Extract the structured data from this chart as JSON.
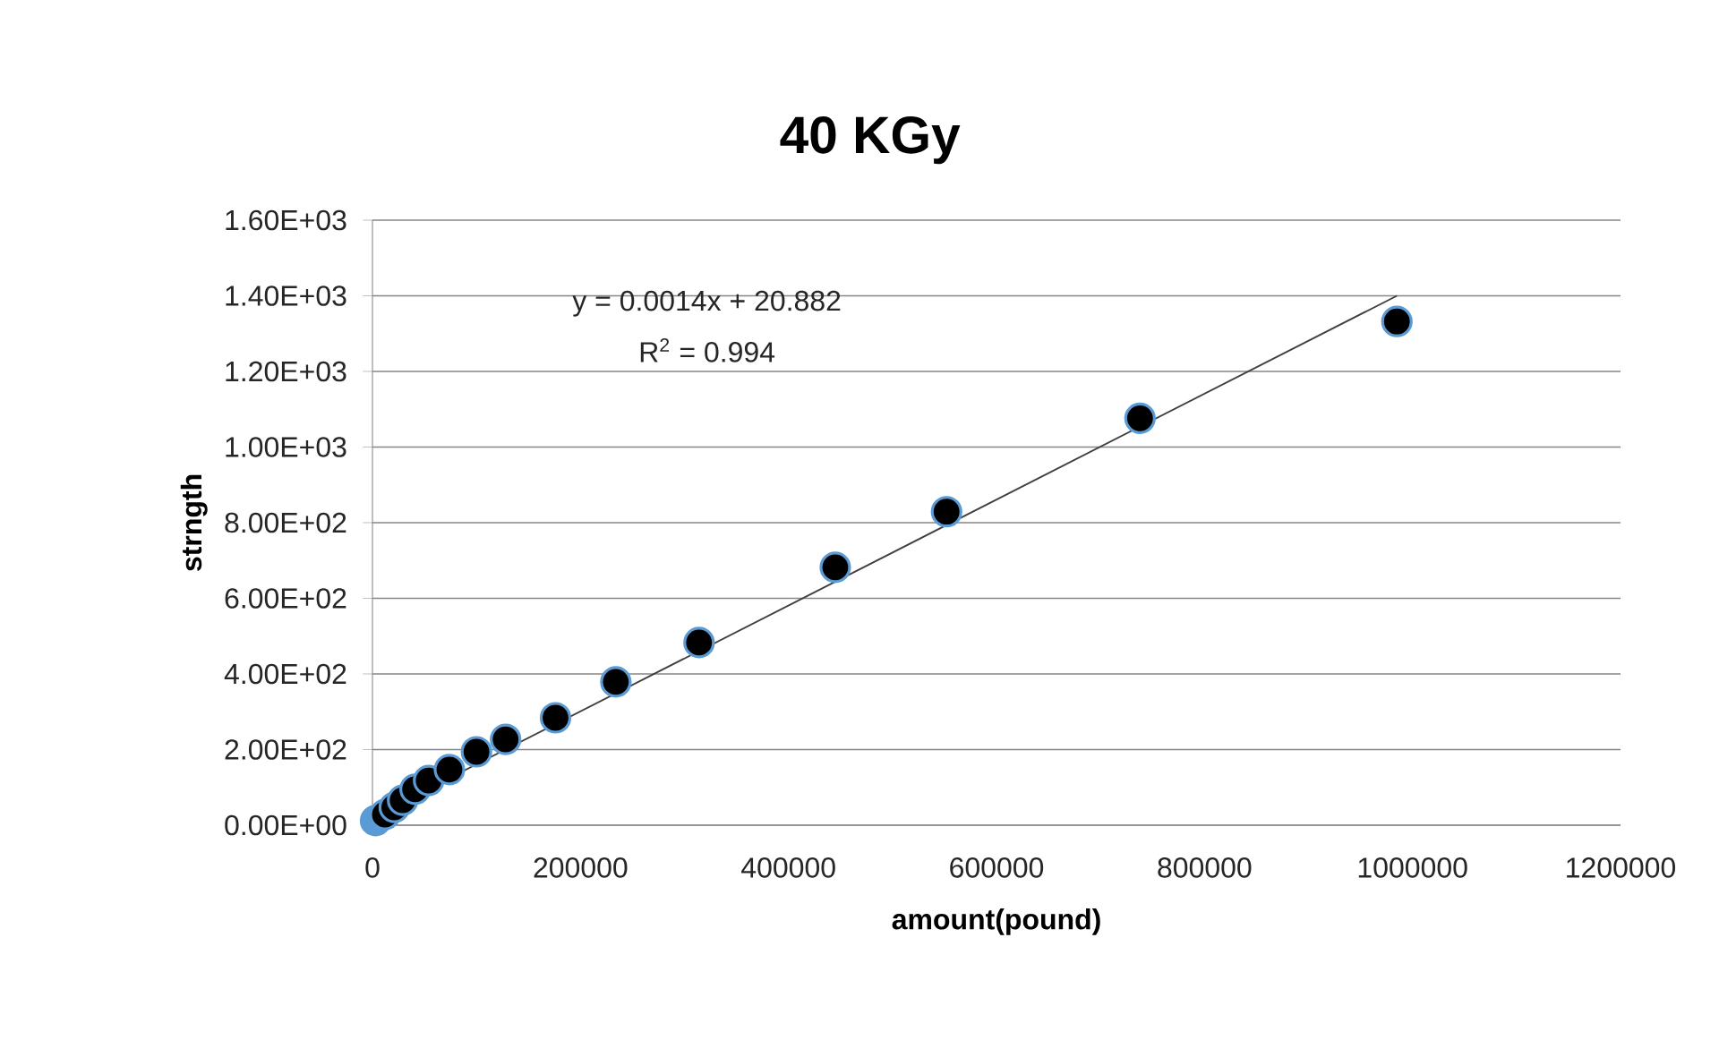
{
  "chart_data": {
    "type": "scatter",
    "title": "40 KGy",
    "xlabel": "amount(pound)",
    "ylabel": "strngth",
    "annotations": [
      "y = 0.0014x + 20.882",
      "R$^{2}$ = 0.994"
    ],
    "series": [
      {
        "color": "#5b9bd5",
        "x": [
          3000,
          12000,
          21000,
          29000,
          41000,
          54000,
          74000,
          100000,
          128000,
          176000,
          234000,
          314000,
          445000,
          552000,
          738000,
          985000
        ],
        "values": [
          12,
          28,
          47,
          66,
          95,
          118,
          147,
          194,
          227,
          284,
          379,
          483,
          682,
          829,
          1076,
          1332
        ],
        "colors": [
          "#5b9bd5",
          "#000000",
          "#000000",
          "#000000",
          "#000000",
          "#000000",
          "#000000",
          "#000000",
          "#000000",
          "#000000",
          "#000000",
          "#000000",
          "#000000",
          "#000000",
          "#000000",
          "#000000"
        ]
      },
      {
        "type": "line",
        "marker": "none",
        "color": "#3f3f3f",
        "x": [
          0,
          985000
        ],
        "values": [
          21,
          1400
        ]
      }
    ],
    "xlim": [
      0,
      1200000
    ],
    "ylim": [
      0,
      1600
    ],
    "xticks": [
      0,
      200000,
      400000,
      600000,
      800000,
      1000000,
      1200000
    ],
    "yticks": [
      {
        "value": 0,
        "label": "0.00E+00"
      },
      {
        "value": 200,
        "label": "2.00E+02"
      },
      {
        "value": 400,
        "label": "4.00E+02"
      },
      {
        "value": 600,
        "label": "6.00E+02"
      },
      {
        "value": 800,
        "label": "8.00E+02"
      },
      {
        "value": 1000,
        "label": "1.00E+03"
      },
      {
        "value": 1200,
        "label": "1.20E+03"
      },
      {
        "value": 1400,
        "label": "1.40E+03"
      },
      {
        "value": 1600,
        "label": "1.60E+03"
      }
    ],
    "grid": "y",
    "marker": "circle"
  }
}
